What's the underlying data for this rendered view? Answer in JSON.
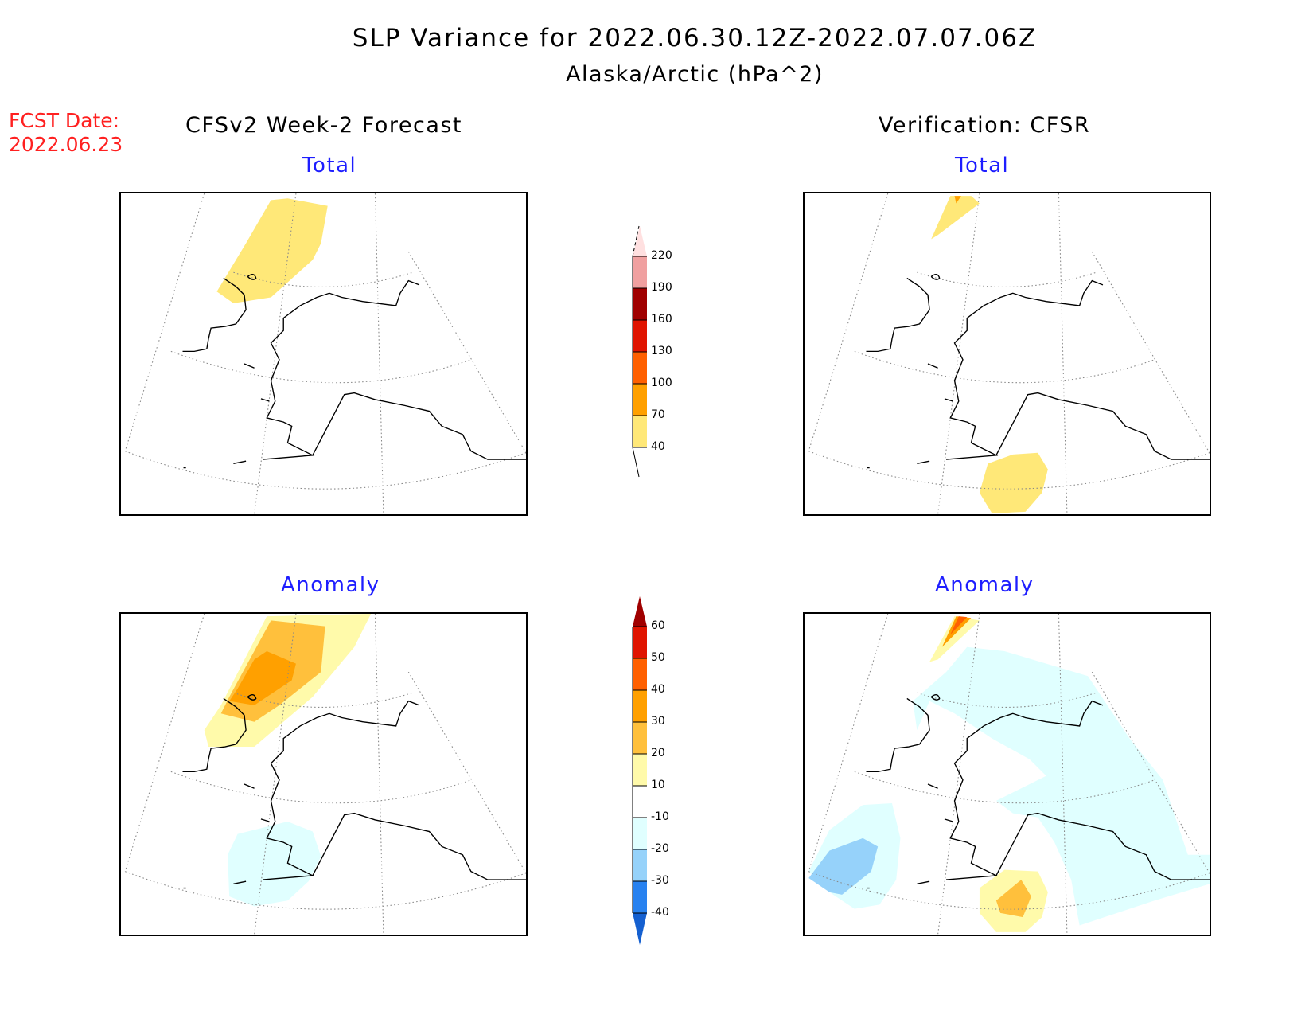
{
  "header": {
    "title": "SLP Variance for 2022.06.30.12Z-2022.07.07.06Z",
    "subtitle": "Alaska/Arctic (hPa^2)"
  },
  "fcst_date": {
    "label": "FCST Date:",
    "value": "2022.06.23"
  },
  "columns": {
    "left": "CFSv2 Week-2 Forecast",
    "right": "Verification: CFSR"
  },
  "panels": {
    "tl": "Total",
    "tr": "Total",
    "bl": "Anomaly",
    "br": "Anomaly"
  },
  "chart_data": [
    {
      "type": "heatmap",
      "title": "CFSv2 Week-2 Forecast - Total",
      "region": "Alaska/Arctic",
      "units": "hPa^2",
      "features": [
        {
          "level": "40-70",
          "location": "Chukchi Sea / Bering Strait northwest"
        }
      ]
    },
    {
      "type": "heatmap",
      "title": "Verification: CFSR - Total",
      "region": "Alaska/Arctic",
      "units": "hPa^2",
      "features": [
        {
          "level": "40-70",
          "location": "far northwest corner (small area with 70-100 core)"
        },
        {
          "level": "40-70",
          "location": "Gulf of Alaska / North Pacific south of Alaska"
        }
      ]
    },
    {
      "type": "heatmap",
      "title": "CFSv2 Week-2 Forecast - Anomaly",
      "region": "Alaska/Arctic",
      "units": "hPa^2",
      "features": [
        {
          "level": "10-40",
          "location": "Chukchi Sea, core 30-40"
        },
        {
          "level": "-10 to -20",
          "location": "Bristol Bay / south of Alaska Peninsula"
        }
      ]
    },
    {
      "type": "heatmap",
      "title": "Verification: CFSR - Anomaly",
      "region": "Alaska/Arctic",
      "units": "hPa^2",
      "features": [
        {
          "level": "10-50",
          "location": "far northwest corner"
        },
        {
          "level": "-10 to -20",
          "location": "most of Alaska and Yukon"
        },
        {
          "level": "-20 to -30",
          "location": "western Bering Sea"
        },
        {
          "level": "10-30",
          "location": "North Pacific south of Alaska"
        }
      ]
    }
  ],
  "colorbars": {
    "total": {
      "levels": [
        "40",
        "70",
        "100",
        "130",
        "160",
        "190",
        "220"
      ],
      "colors": [
        "#ffe878",
        "#ffa000",
        "#ff6000",
        "#e01400",
        "#a00000",
        "#f0a0a0",
        "#ffe0e0"
      ]
    },
    "anomaly": {
      "levels": [
        "-40",
        "-30",
        "-20",
        "-10",
        "10",
        "20",
        "30",
        "40",
        "50",
        "60"
      ],
      "colors": [
        "#1560d0",
        "#2882f0",
        "#96d2fa",
        "#e0ffff",
        "#ffffff",
        "#fffaaa",
        "#ffc03c",
        "#ffa000",
        "#ff6000",
        "#e01400",
        "#a00000"
      ]
    }
  }
}
